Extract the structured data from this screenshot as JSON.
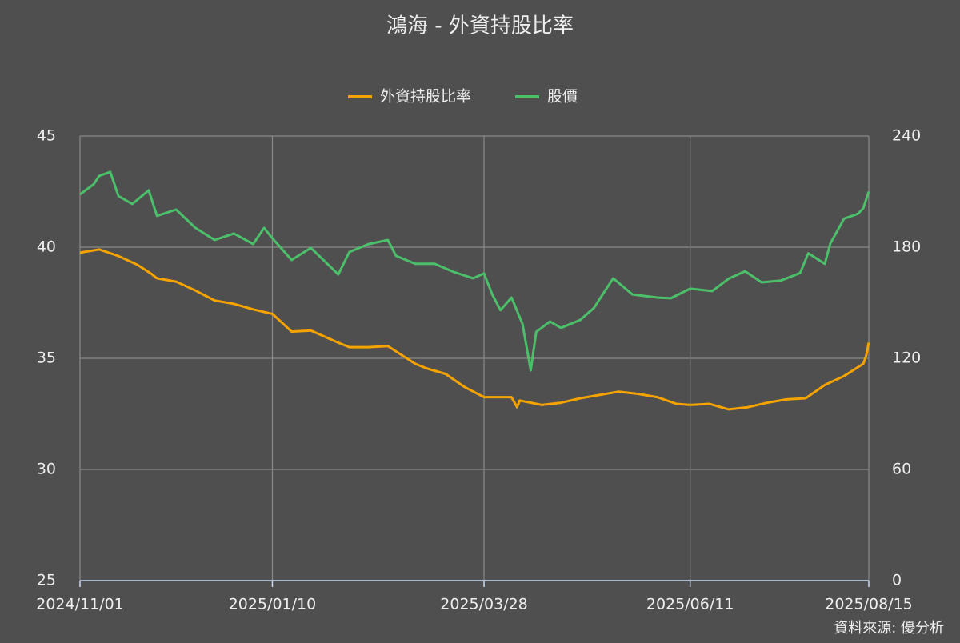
{
  "chart_data": {
    "type": "line",
    "title": "鴻海 - 外資持股比率",
    "source": "資料來源: 優分析",
    "legend_position": "top",
    "grid": true,
    "xlim": [
      "2024/11/01",
      "2025/08/15"
    ],
    "xticks": [
      "2024/11/01",
      "2025/01/10",
      "2025/03/28",
      "2025/06/11",
      "2025/08/15"
    ],
    "ylim": [
      25,
      45
    ],
    "yticks": [
      25,
      30,
      35,
      40,
      45
    ],
    "y2lim": [
      0,
      240
    ],
    "y2ticks": [
      0,
      60,
      120,
      180,
      240
    ],
    "series": [
      {
        "name": "外資持股比率",
        "color": "#f5a300",
        "axis": "y",
        "x": [
          "2024/11/01",
          "2024/11/08",
          "2024/11/15",
          "2024/11/22",
          "2024/11/27",
          "2024/11/29",
          "2024/12/06",
          "2024/12/13",
          "2024/12/20",
          "2024/12/27",
          "2025/01/03",
          "2025/01/10",
          "2025/01/17",
          "2025/01/24",
          "2025/02/03",
          "2025/02/07",
          "2025/02/14",
          "2025/02/21",
          "2025/03/03",
          "2025/03/07",
          "2025/03/14",
          "2025/03/21",
          "2025/03/28",
          "2025/04/07",
          "2025/04/09",
          "2025/04/10",
          "2025/04/18",
          "2025/04/25",
          "2025/05/02",
          "2025/05/09",
          "2025/05/16",
          "2025/05/23",
          "2025/05/30",
          "2025/06/06",
          "2025/06/11",
          "2025/06/18",
          "2025/06/25",
          "2025/07/02",
          "2025/07/09",
          "2025/07/16",
          "2025/07/23",
          "2025/07/30",
          "2025/08/06",
          "2025/08/13",
          "2025/08/14",
          "2025/08/15"
        ],
        "values": [
          39.75,
          39.9,
          39.6,
          39.2,
          38.8,
          38.6,
          38.45,
          38.05,
          37.6,
          37.45,
          37.2,
          37.0,
          36.2,
          36.25,
          35.7,
          35.5,
          35.5,
          35.55,
          34.75,
          34.55,
          34.3,
          33.7,
          33.25,
          33.25,
          32.8,
          33.1,
          32.9,
          33.0,
          33.2,
          33.35,
          33.5,
          33.4,
          33.25,
          32.95,
          32.9,
          32.95,
          32.7,
          32.8,
          33.0,
          33.15,
          33.2,
          33.8,
          34.2,
          34.75,
          35.1,
          35.7
        ]
      },
      {
        "name": "股價",
        "color": "#4cbf6a",
        "axis": "y2",
        "x": [
          "2024/11/01",
          "2024/11/06",
          "2024/11/08",
          "2024/11/12",
          "2024/11/15",
          "2024/11/20",
          "2024/11/26",
          "2024/11/29",
          "2024/12/06",
          "2024/12/13",
          "2024/12/20",
          "2024/12/27",
          "2025/01/03",
          "2025/01/07",
          "2025/01/10",
          "2025/01/17",
          "2025/01/24",
          "2025/02/03",
          "2025/02/07",
          "2025/02/14",
          "2025/02/21",
          "2025/02/24",
          "2025/03/03",
          "2025/03/10",
          "2025/03/17",
          "2025/03/24",
          "2025/03/28",
          "2025/03/31",
          "2025/04/03",
          "2025/04/07",
          "2025/04/11",
          "2025/04/14",
          "2025/04/16",
          "2025/04/21",
          "2025/04/25",
          "2025/05/02",
          "2025/05/07",
          "2025/05/14",
          "2025/05/21",
          "2025/05/30",
          "2025/06/04",
          "2025/06/11",
          "2025/06/19",
          "2025/06/25",
          "2025/07/01",
          "2025/07/07",
          "2025/07/14",
          "2025/07/21",
          "2025/07/24",
          "2025/07/30",
          "2025/08/01",
          "2025/08/06",
          "2025/08/11",
          "2025/08/13",
          "2025/08/15"
        ],
        "values": [
          208.5,
          214,
          218.5,
          220.6,
          207.6,
          203.3,
          210.7,
          196.9,
          200.3,
          190.4,
          183.9,
          187.4,
          181.7,
          190.4,
          184.8,
          173.1,
          179.6,
          165.3,
          177.4,
          181.7,
          183.9,
          175.3,
          171,
          171,
          166.6,
          163.2,
          165.8,
          154.5,
          146,
          152.8,
          138.6,
          113.5,
          134.3,
          139.9,
          136.4,
          140.7,
          147.2,
          163.2,
          154.5,
          152.8,
          152.4,
          157.6,
          156.3,
          163,
          167,
          161,
          162,
          166,
          176.7,
          171,
          182,
          195.4,
          198,
          201,
          210
        ]
      }
    ]
  }
}
